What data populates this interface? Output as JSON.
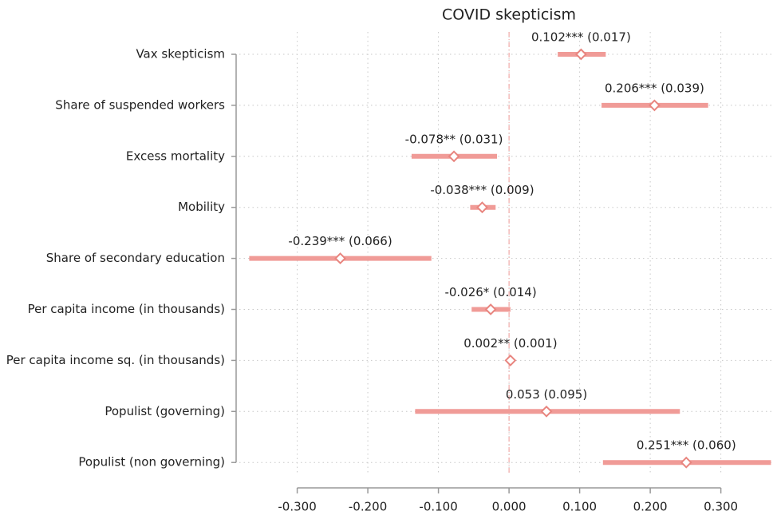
{
  "chart_data": {
    "type": "coefplot",
    "title": "COVID skepticism",
    "categories": [
      "Vax skepticism",
      "Share of suspended workers",
      "Excess mortality",
      "Mobility",
      "Share of secondary education",
      "Per capita income (in thousands)",
      "Per capita income sq. (in thousands)",
      "Populist (governing)",
      "Populist (non governing)"
    ],
    "values": [
      0.102,
      0.206,
      -0.078,
      -0.038,
      -0.239,
      -0.026,
      0.002,
      0.053,
      0.251
    ],
    "value_labels": [
      "0.102*** (0.017)",
      "0.206*** (0.039)",
      "-0.078** (0.031)",
      "-0.038*** (0.009)",
      "-0.239*** (0.066)",
      "-0.026* (0.014)",
      "0.002** (0.001)",
      "0.053 (0.095)",
      "0.251*** (0.060)"
    ],
    "ci_low": [
      0.069,
      0.131,
      -0.138,
      -0.055,
      -0.368,
      -0.053,
      0.0,
      -0.133,
      0.133
    ],
    "ci_high": [
      0.137,
      0.282,
      -0.017,
      -0.019,
      -0.11,
      0.002,
      0.004,
      0.242,
      0.371
    ],
    "color": "#f09b97",
    "marker_color": "#e8857f",
    "reference_line": 0,
    "xlim": [
      -0.382,
      0.375
    ],
    "xticks": [
      {
        "value": -0.3,
        "label": "-0.300"
      },
      {
        "value": -0.2,
        "label": "-0.200"
      },
      {
        "value": -0.1,
        "label": "-0.100"
      },
      {
        "value": 0,
        "label": "0.000"
      },
      {
        "value": 0.1,
        "label": "0.100"
      },
      {
        "value": 0.2,
        "label": "0.200"
      },
      {
        "value": 0.3,
        "label": "0.300"
      }
    ],
    "grid": true
  }
}
